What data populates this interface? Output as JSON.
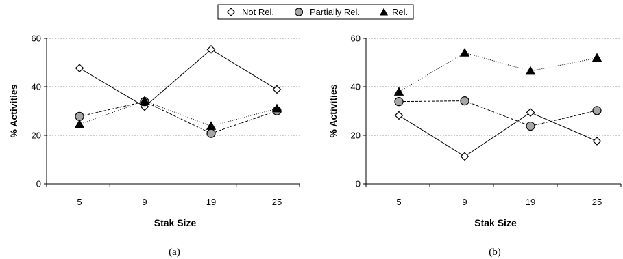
{
  "legend": {
    "items": [
      {
        "label": "Not Rel.",
        "marker": "diamond-open"
      },
      {
        "label": "Partially Rel.",
        "marker": "circle-gray"
      },
      {
        "label": "Rel.",
        "marker": "triangle-black"
      }
    ]
  },
  "chart_data": [
    {
      "type": "line",
      "caption": "(a)",
      "xlabel": "Stak Size",
      "ylabel": "% Activities",
      "categories": [
        "5",
        "9",
        "19",
        "25"
      ],
      "ylim": [
        0,
        60
      ],
      "yticks": [
        0,
        20,
        40,
        60
      ],
      "grid": true,
      "series": [
        {
          "name": "Not Rel.",
          "marker": "diamond-open",
          "line": "solid",
          "values": [
            47.7,
            31.8,
            55.4,
            38.9
          ]
        },
        {
          "name": "Partially Rel.",
          "marker": "circle-gray",
          "line": "dashed",
          "values": [
            27.8,
            33.9,
            20.8,
            30.1
          ]
        },
        {
          "name": "Rel.",
          "marker": "triangle-black",
          "line": "dotted",
          "values": [
            24.5,
            34.2,
            23.8,
            31.0
          ]
        }
      ]
    },
    {
      "type": "line",
      "caption": "(b)",
      "xlabel": "Stak Size",
      "ylabel": "% Activities",
      "categories": [
        "5",
        "9",
        "19",
        "25"
      ],
      "ylim": [
        0,
        60
      ],
      "yticks": [
        0,
        20,
        40,
        60
      ],
      "grid": true,
      "series": [
        {
          "name": "Not Rel.",
          "marker": "diamond-open",
          "line": "solid",
          "values": [
            28.2,
            11.3,
            29.4,
            17.6
          ]
        },
        {
          "name": "Partially Rel.",
          "marker": "circle-gray",
          "line": "dashed",
          "values": [
            33.9,
            34.2,
            23.8,
            30.2
          ]
        },
        {
          "name": "Rel.",
          "marker": "triangle-black",
          "line": "dotted",
          "values": [
            37.9,
            54.0,
            46.5,
            51.9
          ]
        }
      ]
    }
  ],
  "colors": {
    "marker_fill_gray": "#a6a6a6",
    "marker_fill_black": "#000000",
    "marker_fill_open": "#ffffff",
    "gridline": "#9a9a9a"
  }
}
